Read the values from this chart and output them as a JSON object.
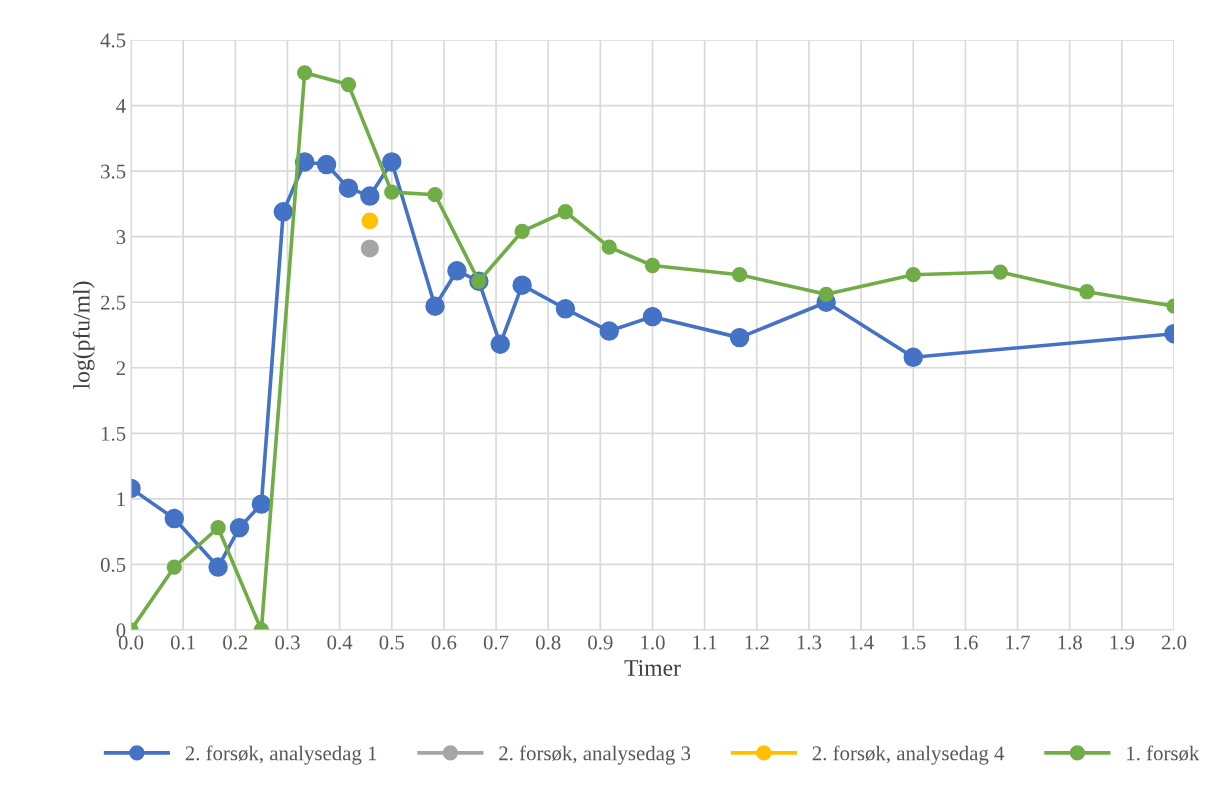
{
  "chart_data": {
    "type": "line",
    "xlabel": "Timer",
    "ylabel": "log(pfu/ml)",
    "xlim": [
      0,
      2
    ],
    "ylim": [
      0,
      4.5
    ],
    "xticks": [
      {
        "value": 0,
        "label": "0.0"
      },
      0.1,
      0.2,
      0.3,
      0.4,
      0.5,
      0.6,
      0.7,
      0.8,
      0.9,
      {
        "value": 1,
        "label": "1.0"
      },
      1.1,
      1.2,
      1.3,
      1.4,
      1.5,
      1.6,
      1.7,
      1.8,
      1.9,
      {
        "value": 2,
        "label": "2.0"
      }
    ],
    "yticks": [
      0,
      0.5,
      1,
      1.5,
      2,
      2.5,
      3,
      3.5,
      4,
      4.5
    ],
    "grid": true,
    "legend": "bottom",
    "marker": "circle",
    "line_style": "solid",
    "series": [
      {
        "name": "2. forsøk, analysedag 1",
        "color": "#4472c4",
        "x": [
          0,
          0.083,
          0.167,
          0.208,
          0.25,
          0.292,
          0.333,
          0.375,
          0.417,
          0.458,
          0.5,
          0.583,
          0.625,
          0.667,
          0.708,
          0.75,
          0.833,
          0.917,
          1.0,
          1.167,
          1.333,
          1.5,
          2.0
        ],
        "values": [
          1.08,
          0.85,
          0.48,
          0.78,
          0.96,
          3.19,
          3.57,
          3.55,
          3.37,
          3.31,
          3.57,
          2.47,
          2.74,
          2.66,
          2.18,
          2.63,
          2.45,
          2.28,
          2.39,
          2.23,
          2.5,
          2.08,
          2.26
        ]
      },
      {
        "name": "2. forsøk, analysedag 3",
        "color": "#a5a5a5",
        "x": [
          0.458
        ],
        "values": [
          2.91
        ]
      },
      {
        "name": "2. forsøk, analysedag 4",
        "color": "#ffc000",
        "x": [
          0.458
        ],
        "values": [
          3.12
        ]
      },
      {
        "name": "1. forsøk",
        "color": "#70ad47",
        "x": [
          0,
          0.083,
          0.167,
          0.25,
          0.333,
          0.417,
          0.5,
          0.583,
          0.667,
          0.75,
          0.833,
          0.917,
          1.0,
          1.167,
          1.333,
          1.5,
          1.667,
          1.833,
          2.0
        ],
        "values": [
          0,
          0.48,
          0.78,
          0,
          4.25,
          4.16,
          3.34,
          3.32,
          2.66,
          3.04,
          3.19,
          2.92,
          2.78,
          2.71,
          2.56,
          2.71,
          2.73,
          2.58,
          2.47
        ]
      }
    ]
  }
}
